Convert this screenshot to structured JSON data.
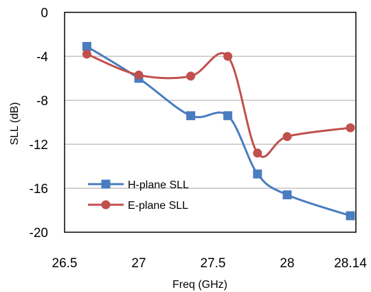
{
  "chart_data": {
    "type": "line",
    "xlabel": "Freq (GHz)",
    "ylabel": "SLL (dB)",
    "xlim": [
      26.5,
      28.14
    ],
    "ylim": [
      -20,
      0
    ],
    "x_ticks": [
      26.5,
      27,
      27.5,
      28,
      28.14
    ],
    "x_tick_labels": [
      "26.5",
      "27",
      "27.5",
      "28",
      "28.14"
    ],
    "y_ticks": [
      0,
      -4,
      -8,
      -12,
      -16,
      -20
    ],
    "y_tick_labels": [
      "0",
      "-4",
      "-8",
      "-12",
      "-16",
      "-20"
    ],
    "grid": "horizontal",
    "legend": "lower-left",
    "series": [
      {
        "name": "H-plane SLL",
        "color": "#4a7cc0",
        "marker": "square",
        "smooth": true,
        "x": [
          26.65,
          27.0,
          27.35,
          27.6,
          27.8,
          28.0,
          28.14
        ],
        "y": [
          -3.1,
          -6.0,
          -9.4,
          -9.4,
          -14.7,
          -16.6,
          -18.5
        ]
      },
      {
        "name": "E-plane SLL",
        "color": "#c0504d",
        "marker": "circle",
        "smooth": true,
        "x": [
          26.65,
          27.0,
          27.35,
          27.6,
          27.8,
          28.0,
          28.14
        ],
        "y": [
          -3.8,
          -5.7,
          -5.8,
          -4.0,
          -12.8,
          -11.3,
          -10.5
        ]
      }
    ]
  }
}
